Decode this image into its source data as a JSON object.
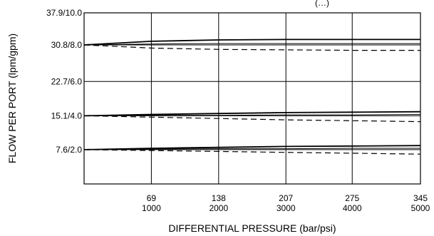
{
  "chart_data": {
    "type": "line",
    "title": "",
    "xlabel": "DIFFERENTIAL PRESSURE (bar/psi)",
    "ylabel": "FLOW PER PORT (lpm/gpm)",
    "top_clipped_text": "(…)",
    "xlim": [
      0,
      345
    ],
    "ylim": [
      0,
      37.9
    ],
    "grid": true,
    "x_ticks": [
      {
        "value": 69,
        "bar": "69",
        "psi": "1000"
      },
      {
        "value": 138,
        "bar": "138",
        "psi": "2000"
      },
      {
        "value": 207,
        "bar": "207",
        "psi": "3000"
      },
      {
        "value": 275,
        "bar": "275",
        "psi": "4000"
      },
      {
        "value": 345,
        "bar": "345",
        "psi": "5000"
      }
    ],
    "y_ticks": [
      {
        "value": 7.6,
        "label": "7.6/2.0"
      },
      {
        "value": 15.1,
        "label": "15.1/4.0"
      },
      {
        "value": 22.7,
        "label": "22.7/6.0"
      },
      {
        "value": 30.8,
        "label": "30.8/8.0"
      },
      {
        "value": 37.9,
        "label": "37.9/10.0"
      }
    ],
    "series": [
      {
        "style": "solid-thick",
        "x": [
          0,
          69,
          138,
          207,
          276,
          345
        ],
        "y": [
          30.8,
          31.6,
          31.9,
          32.0,
          32.0,
          32.0
        ]
      },
      {
        "style": "solid-thin",
        "x": [
          0,
          69,
          138,
          207,
          276,
          345
        ],
        "y": [
          30.8,
          31.0,
          31.1,
          31.1,
          31.1,
          31.1
        ]
      },
      {
        "style": "dashed",
        "x": [
          0,
          69,
          138,
          207,
          276,
          345
        ],
        "y": [
          30.8,
          30.1,
          29.8,
          29.7,
          29.6,
          29.6
        ]
      },
      {
        "style": "solid-thick",
        "x": [
          0,
          69,
          138,
          207,
          276,
          345
        ],
        "y": [
          15.1,
          15.4,
          15.6,
          15.8,
          15.9,
          16.0
        ]
      },
      {
        "style": "solid-thin",
        "x": [
          0,
          69,
          138,
          207,
          276,
          345
        ],
        "y": [
          15.1,
          15.2,
          15.2,
          15.3,
          15.3,
          15.4
        ]
      },
      {
        "style": "dashed",
        "x": [
          0,
          69,
          138,
          207,
          276,
          345
        ],
        "y": [
          15.1,
          14.8,
          14.5,
          14.2,
          14.0,
          13.8
        ]
      },
      {
        "style": "solid-thick",
        "x": [
          0,
          69,
          138,
          207,
          276,
          345
        ],
        "y": [
          7.6,
          7.9,
          8.1,
          8.3,
          8.4,
          8.5
        ]
      },
      {
        "style": "solid-thin",
        "x": [
          0,
          69,
          138,
          207,
          276,
          345
        ],
        "y": [
          7.6,
          7.7,
          7.8,
          7.8,
          7.9,
          7.9
        ]
      },
      {
        "style": "dashed",
        "x": [
          0,
          69,
          138,
          207,
          276,
          345
        ],
        "y": [
          7.6,
          7.4,
          7.2,
          7.0,
          6.8,
          6.6
        ]
      }
    ]
  }
}
